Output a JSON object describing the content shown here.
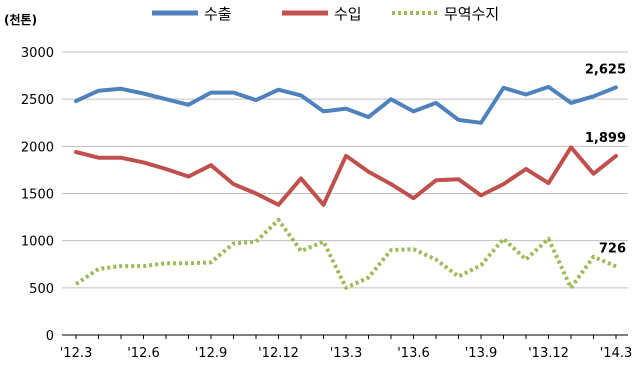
{
  "chart_data": {
    "type": "line",
    "unit_label": "(천톤)",
    "ylim": [
      0,
      3000
    ],
    "y_ticks": [
      0,
      500,
      1000,
      1500,
      2000,
      2500,
      3000
    ],
    "grid": "horizontal",
    "legend_position": "top-center",
    "x": [
      "'12.3",
      "'12.4",
      "'12.5",
      "'12.6",
      "'12.7",
      "'12.8",
      "'12.9",
      "'12.10",
      "'12.11",
      "'12.12",
      "'13.1",
      "'13.2",
      "'13.3",
      "'13.4",
      "'13.5",
      "'13.6",
      "'13.7",
      "'13.8",
      "'13.9",
      "'13.10",
      "'13.11",
      "'13.12",
      "'14.1",
      "'14.2",
      "'14.3"
    ],
    "x_tick_labels": [
      "'12.3",
      "'12.6",
      "'12.9",
      "'12.12",
      "'13.3",
      "'13.6",
      "'13.9",
      "'13.12",
      "'14.3"
    ],
    "series": [
      {
        "name": "수출",
        "color": "#4f81bd",
        "style": "solid",
        "values": [
          2480,
          2590,
          2610,
          2560,
          2500,
          2440,
          2570,
          2570,
          2490,
          2600,
          2540,
          2370,
          2400,
          2310,
          2500,
          2370,
          2460,
          2280,
          2250,
          2620,
          2550,
          2630,
          2460,
          2530,
          2625
        ],
        "end_label": "2,625"
      },
      {
        "name": "수입",
        "color": "#c0504d",
        "style": "solid",
        "values": [
          1940,
          1880,
          1880,
          1830,
          1760,
          1680,
          1800,
          1600,
          1500,
          1380,
          1660,
          1380,
          1900,
          1730,
          1600,
          1450,
          1640,
          1650,
          1480,
          1600,
          1760,
          1610,
          1990,
          1710,
          1899
        ],
        "end_label": "1,899"
      },
      {
        "name": "무역수지",
        "color": "#9bbb59",
        "style": "dotted",
        "values": [
          540,
          700,
          730,
          730,
          760,
          760,
          770,
          970,
          990,
          1220,
          890,
          990,
          500,
          610,
          900,
          910,
          800,
          620,
          740,
          1020,
          800,
          1020,
          500,
          830,
          726
        ],
        "end_label": "726"
      }
    ]
  }
}
